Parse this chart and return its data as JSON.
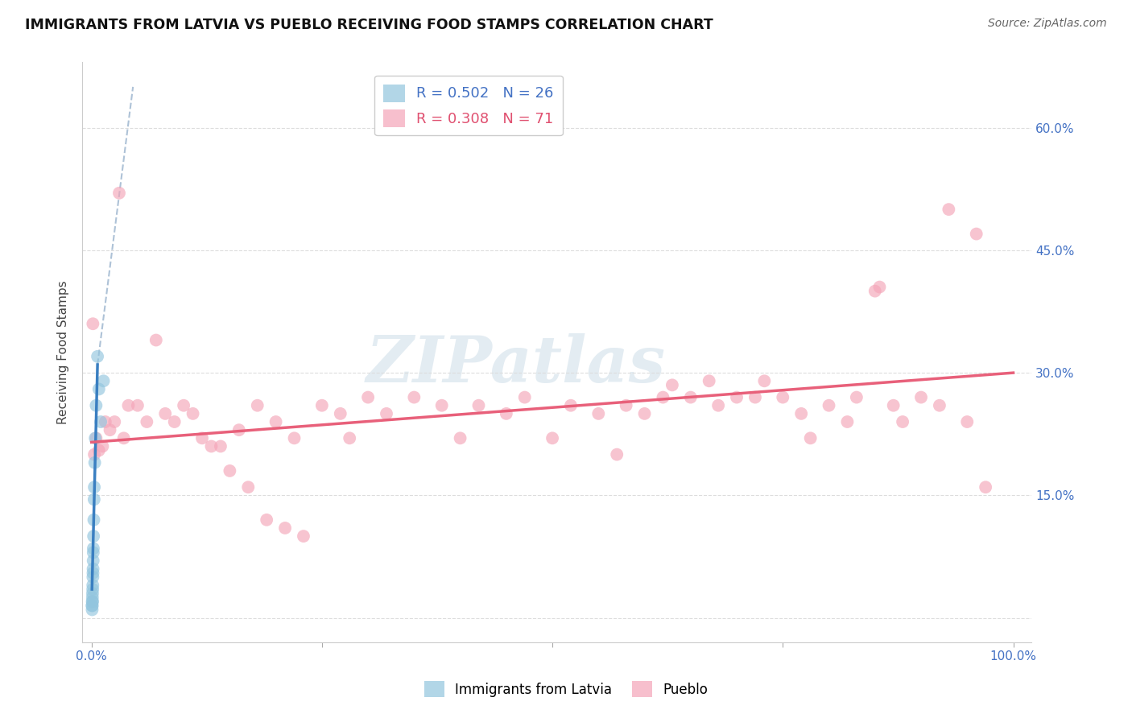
{
  "title": "IMMIGRANTS FROM LATVIA VS PUEBLO RECEIVING FOOD STAMPS CORRELATION CHART",
  "source": "Source: ZipAtlas.com",
  "ylabel": "Receiving Food Stamps",
  "legend_labels": [
    "Immigrants from Latvia",
    "Pueblo"
  ],
  "legend_r": [
    "R = 0.502",
    "R = 0.308"
  ],
  "legend_n": [
    "N = 26",
    "N = 71"
  ],
  "blue_color": "#92c5de",
  "pink_color": "#f4a5b8",
  "blue_line_color": "#3a7fc1",
  "pink_line_color": "#e8607a",
  "dashed_line_color": "#a0b8d0",
  "watermark_color": "#ccdde8",
  "watermark_text": "ZIPatlas",
  "background_color": "#ffffff",
  "grid_color": "#dddddd",
  "tick_color": "#4472c4",
  "xlim": [
    -1.0,
    102.0
  ],
  "ylim": [
    -3.0,
    68.0
  ],
  "ytick_positions": [
    0,
    15,
    30,
    45,
    60
  ],
  "xtick_positions": [
    0,
    25,
    50,
    75,
    100
  ],
  "blue_x": [
    0.05,
    0.07,
    0.08,
    0.09,
    0.1,
    0.11,
    0.12,
    0.13,
    0.14,
    0.15,
    0.16,
    0.17,
    0.18,
    0.19,
    0.2,
    0.22,
    0.25,
    0.28,
    0.3,
    0.35,
    0.4,
    0.5,
    0.65,
    0.8,
    1.0,
    1.3
  ],
  "blue_y": [
    1.5,
    1.0,
    2.0,
    1.5,
    2.5,
    3.0,
    2.0,
    3.5,
    4.0,
    5.0,
    5.5,
    6.0,
    7.0,
    8.0,
    8.5,
    10.0,
    12.0,
    14.5,
    16.0,
    19.0,
    22.0,
    26.0,
    32.0,
    28.0,
    24.0,
    29.0
  ],
  "pink_x": [
    0.3,
    0.5,
    0.8,
    1.2,
    1.5,
    2.0,
    2.5,
    3.0,
    3.5,
    4.0,
    5.0,
    6.0,
    7.0,
    8.0,
    9.0,
    10.0,
    11.0,
    12.0,
    13.0,
    14.0,
    15.0,
    16.0,
    17.0,
    18.0,
    19.0,
    20.0,
    21.0,
    22.0,
    23.0,
    25.0,
    27.0,
    28.0,
    30.0,
    32.0,
    35.0,
    38.0,
    40.0,
    42.0,
    45.0,
    47.0,
    50.0,
    52.0,
    55.0,
    57.0,
    58.0,
    60.0,
    62.0,
    63.0,
    65.0,
    67.0,
    68.0,
    70.0,
    72.0,
    73.0,
    75.0,
    77.0,
    78.0,
    80.0,
    82.0,
    83.0,
    85.0,
    85.5,
    87.0,
    88.0,
    90.0,
    92.0,
    93.0,
    95.0,
    96.0,
    97.0,
    0.15
  ],
  "pink_y": [
    20.0,
    22.0,
    20.5,
    21.0,
    24.0,
    23.0,
    24.0,
    52.0,
    22.0,
    26.0,
    26.0,
    24.0,
    34.0,
    25.0,
    24.0,
    26.0,
    25.0,
    22.0,
    21.0,
    21.0,
    18.0,
    23.0,
    16.0,
    26.0,
    12.0,
    24.0,
    11.0,
    22.0,
    10.0,
    26.0,
    25.0,
    22.0,
    27.0,
    25.0,
    27.0,
    26.0,
    22.0,
    26.0,
    25.0,
    27.0,
    22.0,
    26.0,
    25.0,
    20.0,
    26.0,
    25.0,
    27.0,
    28.5,
    27.0,
    29.0,
    26.0,
    27.0,
    27.0,
    29.0,
    27.0,
    25.0,
    22.0,
    26.0,
    24.0,
    27.0,
    40.0,
    40.5,
    26.0,
    24.0,
    27.0,
    26.0,
    50.0,
    24.0,
    47.0,
    16.0,
    36.0
  ],
  "pink_line_start_x": 0.0,
  "pink_line_start_y": 21.5,
  "pink_line_end_x": 100.0,
  "pink_line_end_y": 30.0,
  "blue_line_start_x": 0.05,
  "blue_line_start_y": 3.5,
  "blue_line_end_x": 0.65,
  "blue_line_end_y": 31.0,
  "dash_line_start_x": 0.65,
  "dash_line_start_y": 31.0,
  "dash_line_end_x": 4.5,
  "dash_line_end_y": 65.0
}
